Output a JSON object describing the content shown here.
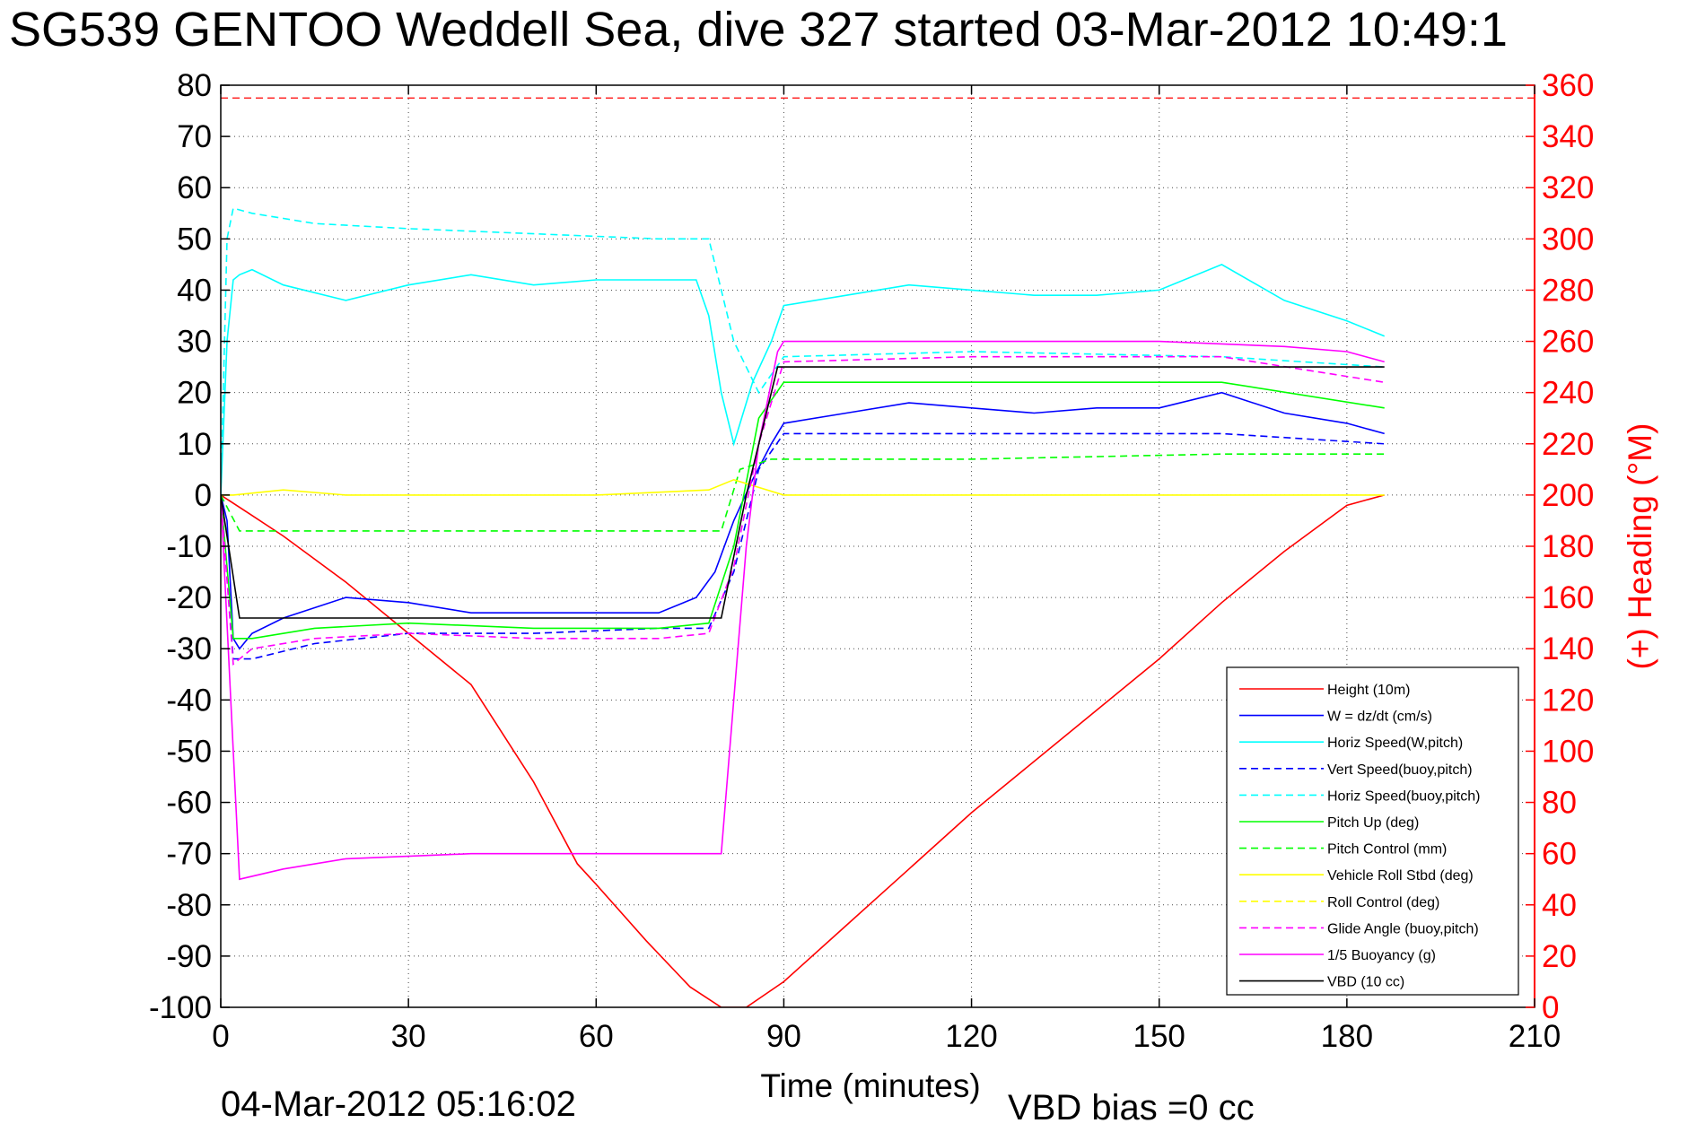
{
  "title": "SG539 GENTOO Weddell Sea, dive 327 started 03-Mar-2012 10:49:1",
  "footer_timestamp": "04-Mar-2012 05:16:02",
  "footer_vbd_bias": "VBD bias =0 cc",
  "chart_data": {
    "type": "line",
    "xlabel": "Time (minutes)",
    "ylabel": "",
    "ylabel_right": "(+) Heading (°M)",
    "xlim": [
      0,
      210
    ],
    "ylim": [
      -100,
      80
    ],
    "ylim_right": [
      0,
      360
    ],
    "x_ticks": [
      0,
      30,
      60,
      90,
      120,
      150,
      180,
      210
    ],
    "y_ticks": [
      80,
      70,
      60,
      50,
      40,
      30,
      20,
      10,
      0,
      -10,
      -20,
      -30,
      -40,
      -50,
      -60,
      -70,
      -80,
      -90,
      -100
    ],
    "y_ticks_right": [
      360,
      340,
      320,
      300,
      280,
      260,
      240,
      220,
      200,
      180,
      160,
      140,
      120,
      100,
      80,
      60,
      40,
      20,
      0
    ],
    "grid": true,
    "legend_position": "bottom-right",
    "legend": [
      {
        "label": "Height (10m)",
        "color": "#ff0000",
        "dash": "solid"
      },
      {
        "label": "W = dz/dt (cm/s)",
        "color": "#0000ff",
        "dash": "solid"
      },
      {
        "label": "Horiz Speed(W,pitch)",
        "color": "#00ffff",
        "dash": "solid"
      },
      {
        "label": "Vert Speed(buoy,pitch)",
        "color": "#0000ff",
        "dash": "dashed"
      },
      {
        "label": "Horiz Speed(buoy,pitch)",
        "color": "#00ffff",
        "dash": "dashed"
      },
      {
        "label": "Pitch Up (deg)",
        "color": "#00ff00",
        "dash": "solid"
      },
      {
        "label": "Pitch Control (mm)",
        "color": "#00ff00",
        "dash": "dashed"
      },
      {
        "label": "Vehicle Roll Stbd (deg)",
        "color": "#ffff00",
        "dash": "solid"
      },
      {
        "label": "Roll Control (deg)",
        "color": "#ffff00",
        "dash": "dashed"
      },
      {
        "label": "Glide Angle (buoy,pitch)",
        "color": "#ff00ff",
        "dash": "dashed"
      },
      {
        "label": "1/5 Buoyancy (g)",
        "color": "#ff00ff",
        "dash": "solid"
      },
      {
        "label": "VBD (10 cc)",
        "color": "#000000",
        "dash": "solid"
      }
    ],
    "heading_ref_level": 355,
    "series": [
      {
        "key": "height",
        "x": [
          0,
          5,
          10,
          20,
          30,
          40,
          50,
          57,
          60,
          68,
          75,
          80,
          84,
          90,
          100,
          110,
          120,
          130,
          140,
          150,
          160,
          170,
          180,
          186
        ],
        "values": [
          0,
          -4,
          -8,
          -17,
          -27,
          -37,
          -56,
          -72,
          -76,
          -87,
          -96,
          -100,
          -100,
          -95,
          -84,
          -73,
          -62,
          -52,
          -42,
          -32,
          -21,
          -11,
          -2,
          0
        ]
      },
      {
        "key": "vert_w",
        "x": [
          0,
          1,
          2,
          3,
          5,
          10,
          20,
          30,
          40,
          50,
          60,
          70,
          76,
          79,
          82,
          85,
          88,
          90,
          100,
          110,
          120,
          130,
          140,
          150,
          160,
          170,
          180,
          186
        ],
        "values": [
          0,
          -5,
          -28,
          -30,
          -27,
          -24,
          -20,
          -21,
          -23,
          -23,
          -23,
          -23,
          -20,
          -15,
          -5,
          3,
          10,
          14,
          16,
          18,
          17,
          16,
          17,
          17,
          20,
          16,
          14,
          12
        ]
      },
      {
        "key": "horiz_w",
        "x": [
          0,
          1,
          2,
          3,
          5,
          10,
          20,
          30,
          40,
          50,
          60,
          70,
          76,
          78,
          80,
          82,
          85,
          88,
          90,
          100,
          110,
          120,
          130,
          140,
          150,
          160,
          170,
          180,
          186
        ],
        "values": [
          0,
          30,
          42,
          43,
          44,
          41,
          38,
          41,
          43,
          41,
          42,
          42,
          42,
          35,
          20,
          10,
          22,
          30,
          37,
          39,
          41,
          40,
          39,
          39,
          40,
          45,
          38,
          34,
          31
        ]
      },
      {
        "key": "vert_buoy",
        "x": [
          0,
          2,
          5,
          15,
          30,
          50,
          70,
          78,
          82,
          86,
          90,
          120,
          160,
          186
        ],
        "values": [
          0,
          -32,
          -32,
          -29,
          -27,
          -27,
          -26,
          -26,
          -15,
          5,
          12,
          12,
          12,
          10
        ]
      },
      {
        "key": "horiz_buoy",
        "x": [
          0,
          1,
          2,
          5,
          15,
          30,
          50,
          70,
          78,
          82,
          86,
          90,
          120,
          160,
          186
        ],
        "values": [
          0,
          50,
          56,
          55,
          53,
          52,
          51,
          50,
          50,
          30,
          20,
          27,
          28,
          27,
          25
        ]
      },
      {
        "key": "pitch_up",
        "x": [
          0,
          2,
          5,
          15,
          30,
          50,
          70,
          78,
          82,
          86,
          90,
          120,
          160,
          186
        ],
        "values": [
          0,
          -28,
          -28,
          -26,
          -25,
          -26,
          -26,
          -25,
          -10,
          15,
          22,
          22,
          22,
          17
        ]
      },
      {
        "key": "pitch_ctrl",
        "x": [
          0,
          3,
          80,
          83,
          88,
          120,
          160,
          186
        ],
        "values": [
          0,
          -7,
          -7,
          5,
          7,
          7,
          8,
          8
        ]
      },
      {
        "key": "roll",
        "x": [
          0,
          2,
          10,
          20,
          40,
          60,
          78,
          82,
          90,
          120,
          150,
          186
        ],
        "values": [
          0,
          0,
          1,
          0,
          0,
          0,
          1,
          3,
          0,
          0,
          0,
          0
        ]
      },
      {
        "key": "glide",
        "x": [
          0,
          2,
          5,
          15,
          30,
          50,
          70,
          78,
          82,
          86,
          90,
          120,
          160,
          186
        ],
        "values": [
          0,
          -33,
          -30,
          -28,
          -27,
          -28,
          -28,
          -27,
          -14,
          10,
          26,
          27,
          27,
          22
        ]
      },
      {
        "key": "buoyancy",
        "x": [
          0,
          3,
          10,
          20,
          40,
          60,
          80,
          84,
          86,
          89,
          90,
          120,
          150,
          170,
          180,
          186
        ],
        "values": [
          0,
          -75,
          -73,
          -71,
          -70,
          -70,
          -70,
          -10,
          10,
          28,
          30,
          30,
          30,
          29,
          28,
          26
        ]
      },
      {
        "key": "vbd",
        "x": [
          0,
          3,
          80,
          84,
          89,
          186
        ],
        "values": [
          0,
          -24,
          -24,
          0,
          25,
          25
        ]
      }
    ]
  }
}
